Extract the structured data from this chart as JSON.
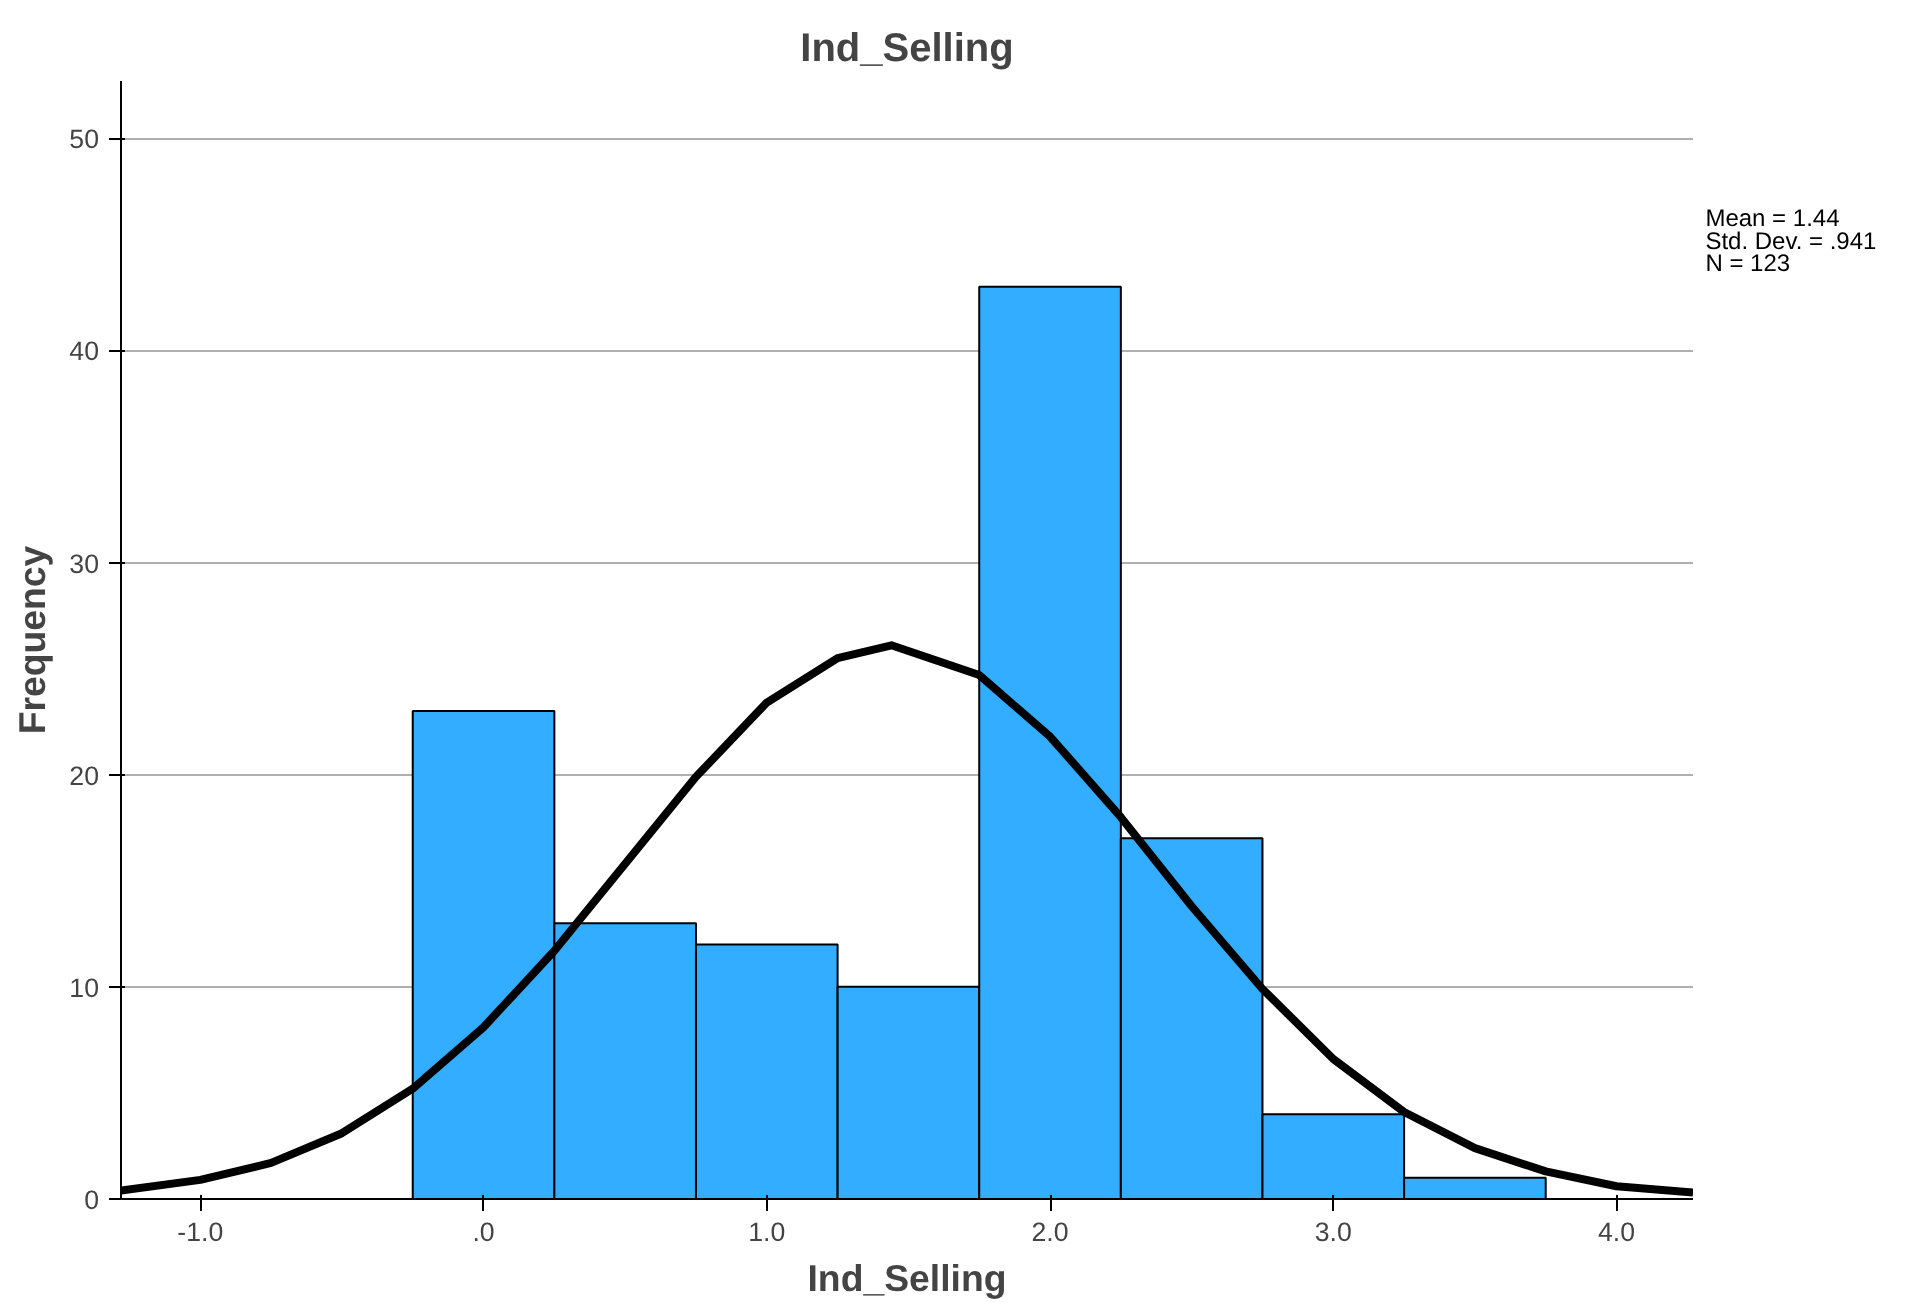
{
  "chart_data": {
    "type": "histogram",
    "title": "Ind_Selling",
    "xlabel": "Ind_Selling",
    "ylabel": "Frequency",
    "annotations": [
      "Mean = 1.44",
      "Std. Dev. = .941",
      "N = 123"
    ],
    "xlim": [
      -1.28,
      4.27
    ],
    "ylim": [
      0,
      52.7
    ],
    "xticks": [
      {
        "value": -1.0,
        "label": "-1.0"
      },
      {
        "value": 0.0,
        "label": ".0"
      },
      {
        "value": 1.0,
        "label": "1.0"
      },
      {
        "value": 2.0,
        "label": "2.0"
      },
      {
        "value": 3.0,
        "label": "3.0"
      },
      {
        "value": 4.0,
        "label": "4.0"
      }
    ],
    "yticks": [
      0,
      10,
      20,
      30,
      40,
      50
    ],
    "grid": "y",
    "series": [
      {
        "color": "#33adff",
        "bins": [
          -0.25,
          0.25,
          0.75,
          1.25,
          1.75,
          2.25,
          2.75,
          3.25,
          3.75
        ],
        "values": [
          23,
          13,
          12,
          10,
          43,
          17,
          4,
          1
        ]
      },
      {
        "type": "line",
        "color": "#000000",
        "x": [
          -1.28,
          -1.0,
          -0.75,
          -0.5,
          -0.25,
          0,
          0.25,
          0.5,
          0.75,
          1.0,
          1.25,
          1.44,
          1.75,
          2.0,
          2.25,
          2.5,
          2.75,
          3.0,
          3.25,
          3.5,
          3.75,
          4.0,
          4.27
        ],
        "values": [
          0.4,
          0.9,
          1.7,
          3.1,
          5.2,
          8.1,
          11.7,
          15.8,
          19.9,
          23.4,
          25.5,
          26.1,
          24.7,
          21.8,
          18.0,
          13.8,
          9.9,
          6.6,
          4.1,
          2.4,
          1.3,
          0.6,
          0.3
        ]
      }
    ]
  }
}
